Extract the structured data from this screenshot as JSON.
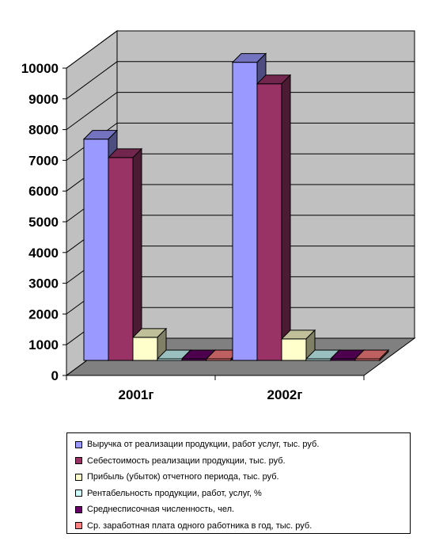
{
  "chart_data": {
    "type": "bar",
    "variant": "3d-clustered-column",
    "categories": [
      "2001г",
      "2002г"
    ],
    "ylim": [
      0,
      10000
    ],
    "yticks": [
      0,
      1000,
      2000,
      3000,
      4000,
      5000,
      6000,
      7000,
      8000,
      9000,
      10000
    ],
    "grid": true,
    "legend_position": "bottom",
    "series": [
      {
        "name": "Выручка от реализации продукции, работ услуг, тыс. руб.",
        "color": "#9999ff",
        "values": [
          7200,
          9700
        ]
      },
      {
        "name": "Себестоимость реализации продукции, тыс. руб.",
        "color": "#993366",
        "values": [
          6600,
          9000
        ]
      },
      {
        "name": "Прибыль (убыток) отчетного периода, тыс. руб.",
        "color": "#ffffcc",
        "values": [
          750,
          700
        ]
      },
      {
        "name": "Рентабельность продукции, работ, услуг, %",
        "color": "#ccffff",
        "values": [
          12,
          8
        ]
      },
      {
        "name": "Среднесписочная численность, чел.",
        "color": "#660066",
        "values": [
          40,
          40
        ]
      },
      {
        "name": "Ср. заработная плата одного работника в год, тыс. руб.",
        "color": "#ff8080",
        "values": [
          30,
          35
        ]
      }
    ]
  }
}
